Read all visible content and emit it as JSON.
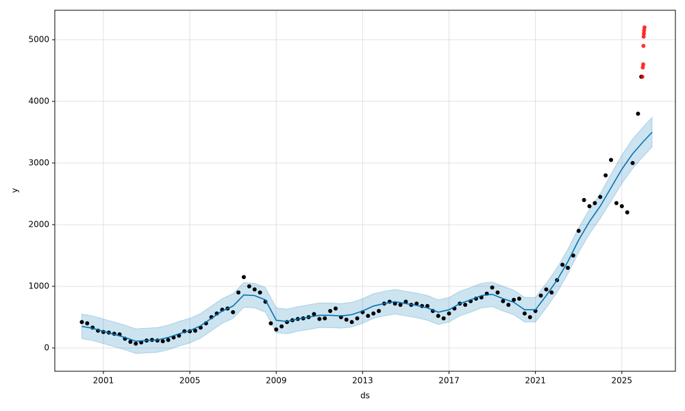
{
  "chart_data": {
    "type": "forecast",
    "x_label": "ds",
    "y_label": "y",
    "xlim": [
      1998.75,
      2027.48
    ],
    "ylim": [
      -378,
      5478
    ],
    "xticks": [
      2001,
      2005,
      2009,
      2013,
      2017,
      2021,
      2025
    ],
    "yticks": [
      0,
      1000,
      2000,
      3000,
      4000,
      5000
    ],
    "grid": true,
    "points": {
      "color": "#000000",
      "x": [
        2000.0,
        2000.25,
        2000.5,
        2000.75,
        2001.0,
        2001.25,
        2001.5,
        2001.75,
        2002.0,
        2002.25,
        2002.5,
        2002.75,
        2003.0,
        2003.25,
        2003.5,
        2003.75,
        2004.0,
        2004.25,
        2004.5,
        2004.75,
        2005.0,
        2005.25,
        2005.5,
        2005.75,
        2006.0,
        2006.25,
        2006.5,
        2006.75,
        2007.0,
        2007.25,
        2007.5,
        2007.75,
        2008.0,
        2008.25,
        2008.5,
        2008.75,
        2009.0,
        2009.25,
        2009.5,
        2009.75,
        2010.0,
        2010.25,
        2010.5,
        2010.75,
        2011.0,
        2011.25,
        2011.5,
        2011.75,
        2012.0,
        2012.25,
        2012.5,
        2012.75,
        2013.0,
        2013.25,
        2013.5,
        2013.75,
        2014.0,
        2014.25,
        2014.5,
        2014.75,
        2015.0,
        2015.25,
        2015.5,
        2015.75,
        2016.0,
        2016.25,
        2016.5,
        2016.75,
        2017.0,
        2017.25,
        2017.5,
        2017.75,
        2018.0,
        2018.25,
        2018.5,
        2018.75,
        2019.0,
        2019.25,
        2019.5,
        2019.75,
        2020.0,
        2020.25,
        2020.5,
        2020.75,
        2021.0,
        2021.25,
        2021.5,
        2021.75,
        2022.0,
        2022.25,
        2022.5,
        2022.75,
        2023.0,
        2023.25,
        2023.5,
        2023.75,
        2024.0,
        2024.25,
        2024.5,
        2024.75,
        2025.0,
        2025.25,
        2025.5,
        2025.75,
        2025.9
      ],
      "values": [
        420,
        400,
        330,
        280,
        260,
        250,
        230,
        220,
        150,
        100,
        70,
        90,
        120,
        130,
        120,
        110,
        130,
        170,
        200,
        270,
        270,
        280,
        330,
        400,
        500,
        560,
        620,
        640,
        580,
        900,
        1150,
        1000,
        950,
        900,
        750,
        400,
        300,
        350,
        420,
        450,
        470,
        480,
        500,
        550,
        470,
        480,
        600,
        640,
        500,
        460,
        420,
        480,
        580,
        520,
        560,
        600,
        720,
        750,
        720,
        700,
        750,
        700,
        720,
        680,
        680,
        600,
        520,
        480,
        560,
        640,
        720,
        700,
        760,
        800,
        820,
        880,
        980,
        900,
        760,
        700,
        780,
        800,
        560,
        500,
        600,
        850,
        950,
        900,
        1100,
        1350,
        1300,
        1500,
        1900,
        2400,
        2300,
        2350,
        2450,
        2800,
        3050,
        2350,
        2300,
        2200,
        3000,
        3800,
        4400
      ]
    },
    "anomalies": {
      "color": "#ff0000",
      "x": [
        2025.95,
        2025.97,
        2025.99,
        2026.0,
        2026.01,
        2026.02,
        2026.03,
        2026.05
      ],
      "values": [
        4400,
        4550,
        4600,
        4900,
        5050,
        5100,
        5150,
        5200
      ]
    },
    "forecast": {
      "color": "#0072B2",
      "x": [
        2000.0,
        2000.5,
        2001.0,
        2001.5,
        2002.0,
        2002.5,
        2003.0,
        2003.5,
        2004.0,
        2004.5,
        2005.0,
        2005.5,
        2006.0,
        2006.5,
        2007.0,
        2007.5,
        2008.0,
        2008.5,
        2009.0,
        2009.5,
        2010.0,
        2010.5,
        2011.0,
        2011.5,
        2012.0,
        2012.5,
        2013.0,
        2013.5,
        2014.0,
        2014.5,
        2015.0,
        2015.5,
        2016.0,
        2016.5,
        2017.0,
        2017.5,
        2018.0,
        2018.5,
        2019.0,
        2019.5,
        2020.0,
        2020.5,
        2021.0,
        2021.5,
        2022.0,
        2022.5,
        2023.0,
        2023.5,
        2024.0,
        2024.5,
        2025.0,
        2025.5,
        2026.0,
        2026.4
      ],
      "values": [
        350,
        320,
        270,
        220,
        170,
        110,
        120,
        130,
        170,
        230,
        280,
        360,
        480,
        600,
        680,
        860,
        850,
        780,
        450,
        430,
        470,
        500,
        530,
        530,
        520,
        540,
        600,
        680,
        720,
        750,
        720,
        690,
        650,
        580,
        620,
        720,
        780,
        850,
        870,
        800,
        740,
        620,
        620,
        850,
        1100,
        1400,
        1750,
        2050,
        2300,
        2600,
        2900,
        3150,
        3350,
        3500
      ],
      "lower": [
        150,
        120,
        70,
        20,
        -30,
        -90,
        -80,
        -70,
        -30,
        30,
        80,
        160,
        280,
        400,
        480,
        660,
        650,
        580,
        250,
        230,
        270,
        300,
        330,
        330,
        320,
        340,
        400,
        480,
        520,
        550,
        520,
        490,
        450,
        380,
        420,
        520,
        580,
        650,
        670,
        600,
        540,
        420,
        420,
        650,
        900,
        1200,
        1550,
        1850,
        2100,
        2380,
        2670,
        2910,
        3110,
        3260
      ],
      "upper": [
        550,
        520,
        470,
        420,
        370,
        310,
        320,
        330,
        370,
        430,
        480,
        560,
        680,
        800,
        880,
        1060,
        1050,
        980,
        650,
        630,
        670,
        700,
        730,
        730,
        720,
        740,
        800,
        880,
        920,
        950,
        920,
        890,
        850,
        780,
        820,
        920,
        980,
        1050,
        1070,
        1000,
        940,
        820,
        820,
        1050,
        1300,
        1600,
        1950,
        2250,
        2500,
        2820,
        3130,
        3390,
        3590,
        3740
      ]
    }
  }
}
